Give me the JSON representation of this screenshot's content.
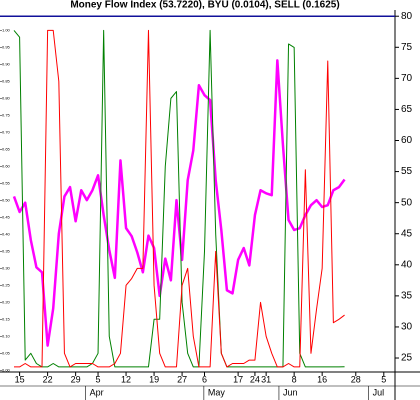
{
  "chart_data": {
    "type": "line",
    "title": "Money Flow Index (53.7220), BYU (0.0104), SELL (0.1625)",
    "x": [
      0,
      1,
      2,
      3,
      4,
      5,
      6,
      7,
      8,
      9,
      10,
      11,
      12,
      13,
      14,
      15,
      16,
      17,
      18,
      19,
      20,
      21,
      22,
      23,
      24,
      25,
      26,
      27,
      28,
      29,
      30,
      31,
      32,
      33,
      34,
      35,
      36,
      37,
      38,
      39,
      40,
      41,
      42,
      43,
      44,
      45,
      46,
      47,
      48,
      49,
      50,
      51,
      52,
      53,
      54,
      55,
      56,
      57,
      58,
      59
    ],
    "xlim": [
      0,
      68
    ],
    "xticks": [
      {
        "value": 1,
        "label": "15"
      },
      {
        "value": 6,
        "label": "22"
      },
      {
        "value": 11,
        "label": "29"
      },
      {
        "value": 15,
        "label": "5"
      },
      {
        "value": 20,
        "label": "12"
      },
      {
        "value": 25,
        "label": "19"
      },
      {
        "value": 30,
        "label": "27"
      },
      {
        "value": 34,
        "label": "6"
      },
      {
        "value": 40,
        "label": "17"
      },
      {
        "value": 43,
        "label": "24"
      },
      {
        "value": 45,
        "label": "31"
      },
      {
        "value": 50,
        "label": "8"
      },
      {
        "value": 55,
        "label": "16"
      },
      {
        "value": 61,
        "label": "28"
      },
      {
        "value": 66,
        "label": "5"
      }
    ],
    "month_labels": [
      {
        "value": 13.5,
        "label": "Apr"
      },
      {
        "value": 34.6,
        "label": "May"
      },
      {
        "value": 48,
        "label": "Jun"
      },
      {
        "value": 64,
        "label": "Jul"
      }
    ],
    "ylim": [
      -0.005,
      1.06
    ],
    "yticks": [
      {
        "value": 0,
        "label": "0.00"
      },
      {
        "value": 0.05,
        "label": "0.05"
      },
      {
        "value": 0.1,
        "label": "0.10"
      },
      {
        "value": 0.15,
        "label": "0.15"
      },
      {
        "value": 0.2,
        "label": "0.20"
      },
      {
        "value": 0.25,
        "label": "0.25"
      },
      {
        "value": 0.3,
        "label": "0.30"
      },
      {
        "value": 0.35,
        "label": "0.35"
      },
      {
        "value": 0.4,
        "label": "0.40"
      },
      {
        "value": 0.45,
        "label": "0.45"
      },
      {
        "value": 0.5,
        "label": "0.50"
      },
      {
        "value": 0.55,
        "label": "0.55"
      },
      {
        "value": 0.6,
        "label": "0.60"
      },
      {
        "value": 0.65,
        "label": "0.65"
      },
      {
        "value": 0.7,
        "label": "0.70"
      },
      {
        "value": 0.75,
        "label": "0.75"
      },
      {
        "value": 0.8,
        "label": "0.80"
      },
      {
        "value": 0.85,
        "label": "0.85"
      },
      {
        "value": 0.9,
        "label": "0.90"
      },
      {
        "value": 0.95,
        "label": "0.95"
      },
      {
        "value": 1,
        "label": "1.00"
      }
    ],
    "y2lim": [
      22.75,
      81
    ],
    "y2ticks": [
      25,
      30,
      35,
      40,
      45,
      50,
      55,
      60,
      65,
      70,
      75,
      80
    ],
    "hline": {
      "value": 80,
      "axis": "y2",
      "color": "#10109a"
    },
    "series": [
      {
        "color": "#ff00ff",
        "axis": "y2",
        "values": [
          51,
          48.5,
          50,
          44,
          39.6,
          38.8,
          27,
          33,
          45,
          51,
          52.5,
          47,
          52,
          50.4,
          52,
          54.4,
          48,
          42.4,
          37.9,
          56.8,
          45.9,
          44.6,
          42,
          38.8,
          44.7,
          42.7,
          35,
          41,
          37.5,
          50.4,
          40.8,
          53.6,
          58.4,
          68.9,
          67.3,
          66.5,
          53.6,
          45.6,
          35.9,
          35.4,
          40.8,
          42.7,
          39.9,
          48,
          52,
          51.5,
          51.2,
          72.9,
          59.3,
          47.2,
          45.6,
          45.9,
          48,
          49.6,
          50.4,
          49.3,
          49.6,
          52,
          52.5,
          53.722
        ]
      },
      {
        "color": "#008000",
        "axis": "y",
        "values": [
          1.0,
          0.98,
          0.03,
          0.05,
          0.02,
          0.01,
          0.01,
          0.02,
          0.01,
          0.01,
          0.01,
          0.01,
          0.01,
          0.01,
          0.02,
          0.05,
          1.0,
          0.1,
          0.01,
          0.01,
          0.01,
          0.01,
          0.01,
          0.01,
          0.01,
          0.15,
          0.15,
          0.6,
          0.8,
          0.82,
          0.2,
          0.05,
          0.01,
          0.01,
          0.35,
          1.0,
          0.4,
          0.05,
          0.01,
          0.01,
          0.01,
          0.01,
          0.01,
          0.01,
          0.01,
          0.01,
          0.01,
          0.01,
          0.01,
          0.96,
          0.95,
          0.05,
          0.01,
          0.01,
          0.01,
          0.01,
          0.01,
          0.01,
          0.01,
          0.0104
        ]
      },
      {
        "color": "#ff0000",
        "axis": "y",
        "values": [
          0.01,
          0.01,
          0.02,
          0.01,
          0.01,
          0.01,
          1.0,
          1.0,
          0.85,
          0.05,
          0.01,
          0.02,
          0.02,
          0.02,
          0.02,
          0.01,
          0.01,
          0.01,
          0.02,
          0.05,
          0.25,
          0.27,
          0.3,
          0.3,
          1.0,
          0.25,
          0.05,
          0.01,
          0.01,
          0.01,
          0.25,
          0.3,
          0.1,
          0.01,
          0.01,
          0.01,
          0.35,
          0.05,
          0.01,
          0.02,
          0.02,
          0.02,
          0.03,
          0.03,
          0.2,
          0.1,
          0.05,
          0.01,
          0.01,
          0.02,
          0.01,
          0.01,
          0.59,
          0.05,
          0.18,
          0.3,
          0.91,
          0.14,
          0.15,
          0.1625
        ]
      }
    ]
  }
}
